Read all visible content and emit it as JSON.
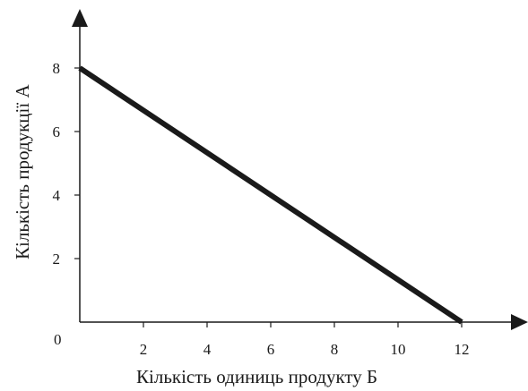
{
  "chart_data": {
    "type": "line",
    "title": "",
    "xlabel": "Кількість одиниць продукту Б",
    "ylabel": "Кількість продукції А",
    "origin_label": "0",
    "x_ticks": [
      2,
      4,
      6,
      8,
      10,
      12
    ],
    "y_ticks": [
      2,
      4,
      6,
      8
    ],
    "xlim": [
      0,
      12
    ],
    "ylim": [
      0,
      8
    ],
    "grid": false,
    "series": [
      {
        "points": [
          {
            "x": 0,
            "y": 8
          },
          {
            "x": 12,
            "y": 0
          }
        ],
        "color": "#1a1a1a"
      }
    ]
  }
}
